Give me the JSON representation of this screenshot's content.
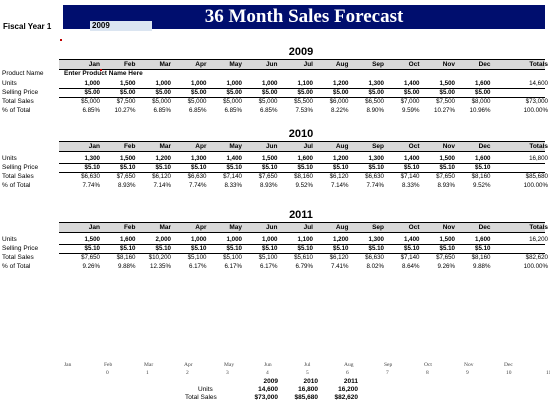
{
  "title": "36 Month Sales Forecast",
  "fiscal_year_label": "Fiscal Year 1",
  "fiscal_year_value": "2009",
  "months": [
    "Jan",
    "Feb",
    "Mar",
    "Apr",
    "May",
    "Jun",
    "Jul",
    "Aug",
    "Sep",
    "Oct",
    "Nov",
    "Dec"
  ],
  "totals_label": "Totals",
  "product_name_label": "Product Name",
  "product_name_value": "Enter Product Name Here",
  "row_labels": {
    "units": "Units",
    "price": "Selling Price",
    "sales": "Total Sales",
    "pct": "% of Total"
  },
  "years": [
    {
      "year": "2009",
      "units": [
        "1,000",
        "1,500",
        "1,000",
        "1,000",
        "1,000",
        "1,000",
        "1,100",
        "1,200",
        "1,300",
        "1,400",
        "1,500",
        "1,600"
      ],
      "units_total": "14,600",
      "price": [
        "$5.00",
        "$5.00",
        "$5.00",
        "$5.00",
        "$5.00",
        "$5.00",
        "$5.00",
        "$5.00",
        "$5.00",
        "$5.00",
        "$5.00",
        "$5.00"
      ],
      "sales": [
        "$5,000",
        "$7,500",
        "$5,000",
        "$5,000",
        "$5,000",
        "$5,000",
        "$5,500",
        "$6,000",
        "$6,500",
        "$7,000",
        "$7,500",
        "$8,000"
      ],
      "sales_total": "$73,000",
      "pct": [
        "6.85%",
        "10.27%",
        "6.85%",
        "6.85%",
        "6.85%",
        "6.85%",
        "7.53%",
        "8.22%",
        "8.90%",
        "9.59%",
        "10.27%",
        "10.96%"
      ],
      "pct_total": "100.00%"
    },
    {
      "year": "2010",
      "units": [
        "1,300",
        "1,500",
        "1,200",
        "1,300",
        "1,400",
        "1,500",
        "1,600",
        "1,200",
        "1,300",
        "1,400",
        "1,500",
        "1,600"
      ],
      "units_total": "16,800",
      "price": [
        "$5.10",
        "$5.10",
        "$5.10",
        "$5.10",
        "$5.10",
        "$5.10",
        "$5.10",
        "$5.10",
        "$5.10",
        "$5.10",
        "$5.10",
        "$5.10"
      ],
      "sales": [
        "$6,630",
        "$7,650",
        "$6,120",
        "$6,630",
        "$7,140",
        "$7,650",
        "$8,160",
        "$6,120",
        "$6,630",
        "$7,140",
        "$7,650",
        "$8,160"
      ],
      "sales_total": "$85,680",
      "pct": [
        "7.74%",
        "8.93%",
        "7.14%",
        "7.74%",
        "8.33%",
        "8.93%",
        "9.52%",
        "7.14%",
        "7.74%",
        "8.33%",
        "8.93%",
        "9.52%"
      ],
      "pct_total": "100.00%"
    },
    {
      "year": "2011",
      "units": [
        "1,500",
        "1,600",
        "2,000",
        "1,000",
        "1,000",
        "1,000",
        "1,100",
        "1,200",
        "1,300",
        "1,400",
        "1,500",
        "1,600"
      ],
      "units_total": "16,200",
      "price": [
        "$5.10",
        "$5.10",
        "$5.10",
        "$5.10",
        "$5.10",
        "$5.10",
        "$5.10",
        "$5.10",
        "$5.10",
        "$5.10",
        "$5.10",
        "$5.10"
      ],
      "sales": [
        "$7,650",
        "$8,160",
        "$10,200",
        "$5,100",
        "$5,100",
        "$5,100",
        "$5,610",
        "$6,120",
        "$6,630",
        "$7,140",
        "$7,650",
        "$8,160"
      ],
      "sales_total": "$82,620",
      "pct": [
        "9.26%",
        "9.88%",
        "12.35%",
        "6.17%",
        "6.17%",
        "6.17%",
        "6.79%",
        "7.41%",
        "8.02%",
        "8.64%",
        "9.26%",
        "9.88%"
      ],
      "pct_total": "100.00%"
    }
  ],
  "month_index_row": {
    "months": [
      "Jan",
      "Feb",
      "Mar",
      "Apr",
      "May",
      "Jun",
      "Jul",
      "Aug",
      "Sep",
      "Oct",
      "Nov",
      "Dec"
    ],
    "numbers": [
      "0",
      "1",
      "2",
      "3",
      "4",
      "5",
      "6",
      "7",
      "8",
      "9",
      "10",
      "11"
    ]
  },
  "summary": {
    "years": [
      "2009",
      "2010",
      "2011"
    ],
    "units_label": "Units",
    "sales_label": "Total Sales",
    "units": [
      "14,600",
      "16,800",
      "16,200"
    ],
    "sales": [
      "$73,000",
      "$85,680",
      "$82,620"
    ]
  }
}
